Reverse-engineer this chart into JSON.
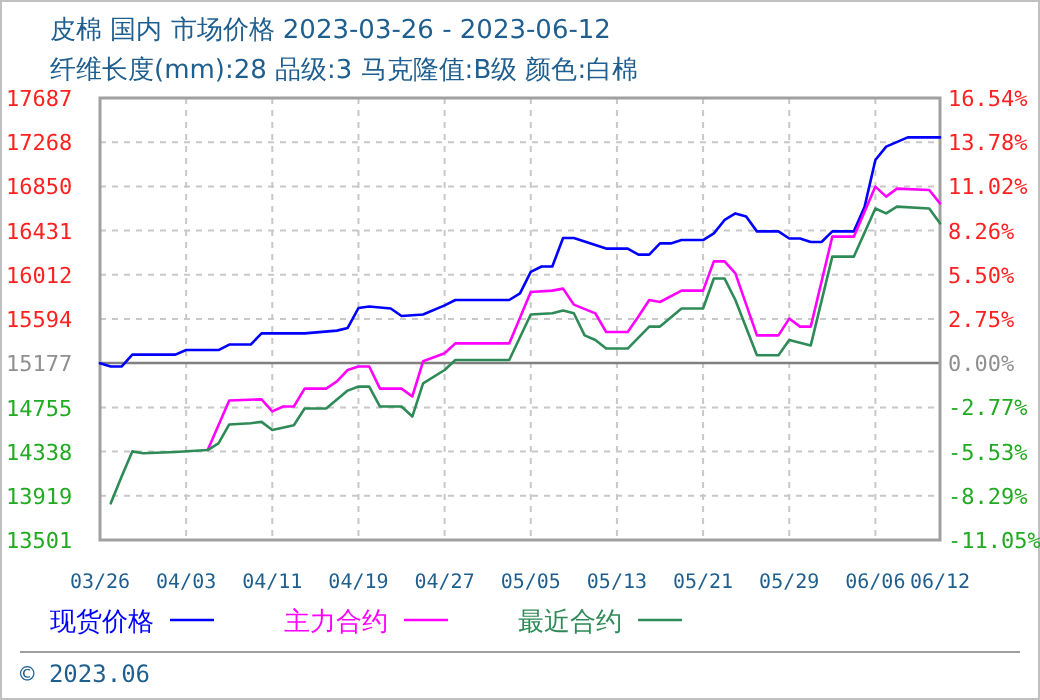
{
  "chart_data": {
    "type": "line",
    "title": "皮棉 国内 市场价格 2023-03-26 - 2023-06-12",
    "subtitle": "纤维长度(mm):28 品级:3 马克隆值:B级 颜色:白棉",
    "annotations": [
      "© 2023.06"
    ],
    "xlim": [
      "2023-03-26",
      "2023-06-12"
    ],
    "xticks": [
      {
        "value": "2023-03-26",
        "label": "03/26"
      },
      {
        "value": "2023-04-03",
        "label": "04/03"
      },
      {
        "value": "2023-04-11",
        "label": "04/11"
      },
      {
        "value": "2023-04-19",
        "label": "04/19"
      },
      {
        "value": "2023-04-27",
        "label": "04/27"
      },
      {
        "value": "2023-05-05",
        "label": "05/05"
      },
      {
        "value": "2023-05-13",
        "label": "05/13"
      },
      {
        "value": "2023-05-21",
        "label": "05/21"
      },
      {
        "value": "2023-05-29",
        "label": "05/29"
      },
      {
        "value": "2023-06-06",
        "label": "06/06"
      },
      {
        "value": "2023-06-12",
        "label": "06/12"
      }
    ],
    "ylim": [
      13501,
      17687
    ],
    "yticks": [
      17687,
      17268,
      16850,
      16431,
      16012,
      15594,
      15177,
      14755,
      14338,
      13919,
      13501
    ],
    "y2lim": [
      -11.05,
      16.54
    ],
    "y2ticks": [
      {
        "value": 16.54,
        "label": "16.54%"
      },
      {
        "value": 13.78,
        "label": "13.78%"
      },
      {
        "value": 11.02,
        "label": "11.02%"
      },
      {
        "value": 8.26,
        "label": "8.26%"
      },
      {
        "value": 5.5,
        "label": "5.50%"
      },
      {
        "value": 2.75,
        "label": "2.75%"
      },
      {
        "value": 0,
        "label": "0.00%"
      },
      {
        "value": -2.77,
        "label": "-2.77%"
      },
      {
        "value": -5.53,
        "label": "-5.53%"
      },
      {
        "value": -8.29,
        "label": "-8.29%"
      },
      {
        "value": -11.05,
        "label": "-11.05%"
      }
    ],
    "ref_lines": [
      {
        "axis": "y2",
        "value": 0,
        "color": "#808080"
      }
    ],
    "grid": true,
    "legend": "bottom",
    "line_style": "solid",
    "marker": "none",
    "series": [
      {
        "name": "现货价格",
        "color": "#0000ff",
        "x": [
          "2023-03-26",
          "2023-03-27",
          "2023-03-28",
          "2023-03-29",
          "2023-04-02",
          "2023-04-03",
          "2023-04-06",
          "2023-04-07",
          "2023-04-09",
          "2023-04-10",
          "2023-04-14",
          "2023-04-17",
          "2023-04-18",
          "2023-04-19",
          "2023-04-20",
          "2023-04-22",
          "2023-04-23",
          "2023-04-25",
          "2023-04-27",
          "2023-04-28",
          "2023-05-03",
          "2023-05-04",
          "2023-05-05",
          "2023-05-06",
          "2023-05-07",
          "2023-05-08",
          "2023-05-09",
          "2023-05-12",
          "2023-05-14",
          "2023-05-15",
          "2023-05-16",
          "2023-05-17",
          "2023-05-18",
          "2023-05-19",
          "2023-05-21",
          "2023-05-22",
          "2023-05-23",
          "2023-05-24",
          "2023-05-25",
          "2023-05-26",
          "2023-05-28",
          "2023-05-29",
          "2023-05-30",
          "2023-05-31",
          "2023-06-01",
          "2023-06-02",
          "2023-06-04",
          "2023-06-05",
          "2023-06-06",
          "2023-06-07",
          "2023-06-09",
          "2023-06-12"
        ],
        "values": [
          15174,
          15144,
          15144,
          15257,
          15257,
          15300,
          15300,
          15352,
          15352,
          15458,
          15458,
          15484,
          15509,
          15698,
          15712,
          15693,
          15622,
          15637,
          15723,
          15774,
          15774,
          15837,
          16040,
          16091,
          16091,
          16361,
          16361,
          16261,
          16261,
          16204,
          16204,
          16310,
          16310,
          16342,
          16342,
          16405,
          16532,
          16594,
          16564,
          16424,
          16424,
          16356,
          16356,
          16323,
          16323,
          16424,
          16424,
          16658,
          17100,
          17227,
          17314,
          17314
        ]
      },
      {
        "name": "主力合约",
        "color": "#ff00ff",
        "x": [
          "2023-04-05",
          "2023-04-07",
          "2023-04-10",
          "2023-04-11",
          "2023-04-12",
          "2023-04-13",
          "2023-04-14",
          "2023-04-16",
          "2023-04-17",
          "2023-04-18",
          "2023-04-19",
          "2023-04-20",
          "2023-04-21",
          "2023-04-23",
          "2023-04-24",
          "2023-04-25",
          "2023-04-27",
          "2023-04-28",
          "2023-05-03",
          "2023-05-05",
          "2023-05-07",
          "2023-05-08",
          "2023-05-09",
          "2023-05-11",
          "2023-05-12",
          "2023-05-14",
          "2023-05-15",
          "2023-05-16",
          "2023-05-17",
          "2023-05-19",
          "2023-05-21",
          "2023-05-22",
          "2023-05-23",
          "2023-05-24",
          "2023-05-26",
          "2023-05-28",
          "2023-05-29",
          "2023-05-30",
          "2023-05-31",
          "2023-06-02",
          "2023-06-04",
          "2023-06-06",
          "2023-06-07",
          "2023-06-08",
          "2023-06-11",
          "2023-06-12"
        ],
        "values": [
          14353,
          14822,
          14833,
          14719,
          14765,
          14765,
          14935,
          14935,
          15003,
          15111,
          15144,
          15144,
          14935,
          14935,
          14860,
          15193,
          15269,
          15363,
          15363,
          15850,
          15863,
          15882,
          15730,
          15647,
          15471,
          15471,
          15617,
          15774,
          15755,
          15863,
          15863,
          16140,
          16140,
          16026,
          15439,
          15439,
          15598,
          15522,
          15522,
          16374,
          16374,
          16848,
          16753,
          16829,
          16816,
          16689
        ]
      },
      {
        "name": "最近合约",
        "color": "#2e8b57",
        "x": [
          "2023-03-27",
          "2023-03-28",
          "2023-03-29",
          "2023-03-30",
          "2023-04-02",
          "2023-04-05",
          "2023-04-06",
          "2023-04-07",
          "2023-04-09",
          "2023-04-10",
          "2023-04-11",
          "2023-04-13",
          "2023-04-14",
          "2023-04-16",
          "2023-04-18",
          "2023-04-19",
          "2023-04-20",
          "2023-04-21",
          "2023-04-23",
          "2023-04-24",
          "2023-04-25",
          "2023-04-27",
          "2023-04-28",
          "2023-05-03",
          "2023-05-05",
          "2023-05-07",
          "2023-05-08",
          "2023-05-09",
          "2023-05-10",
          "2023-05-11",
          "2023-05-12",
          "2023-05-14",
          "2023-05-16",
          "2023-05-17",
          "2023-05-19",
          "2023-05-21",
          "2023-05-22",
          "2023-05-23",
          "2023-05-24",
          "2023-05-26",
          "2023-05-28",
          "2023-05-29",
          "2023-05-31",
          "2023-06-02",
          "2023-06-04",
          "2023-06-06",
          "2023-06-07",
          "2023-06-08",
          "2023-06-11",
          "2023-06-12"
        ],
        "values": [
          13848,
          14101,
          14340,
          14322,
          14335,
          14353,
          14416,
          14595,
          14607,
          14620,
          14543,
          14587,
          14746,
          14746,
          14916,
          14954,
          14954,
          14765,
          14765,
          14670,
          14984,
          15111,
          15206,
          15206,
          15636,
          15648,
          15674,
          15648,
          15439,
          15395,
          15314,
          15314,
          15522,
          15522,
          15693,
          15693,
          15977,
          15977,
          15774,
          15250,
          15250,
          15395,
          15344,
          16185,
          16185,
          16640,
          16594,
          16658,
          16640,
          16500
        ]
      }
    ]
  }
}
